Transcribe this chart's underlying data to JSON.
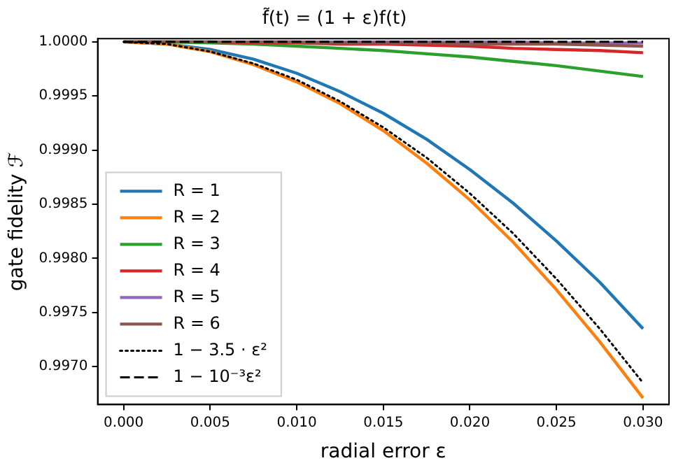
{
  "chart_data": {
    "type": "line",
    "title": "f̃(t) = (1 + ε)f(t)",
    "xlabel": "radial error ε",
    "ylabel": "gate fidelity ℱ",
    "x": [
      0,
      0.0025,
      0.005,
      0.0075,
      0.01,
      0.0125,
      0.015,
      0.0175,
      0.02,
      0.0225,
      0.025,
      0.0275,
      0.03
    ],
    "series": [
      {
        "name": "R = 1",
        "color": "#1f77b4",
        "values": [
          1,
          0.99998,
          0.99993,
          0.99984,
          0.99971,
          0.99954,
          0.99934,
          0.9991,
          0.99882,
          0.99851,
          0.99816,
          0.99778,
          0.99735
        ]
      },
      {
        "name": "R = 2",
        "color": "#ff7f0e",
        "values": [
          1,
          0.99998,
          0.99991,
          0.99979,
          0.99963,
          0.99943,
          0.99918,
          0.99888,
          0.99854,
          0.99815,
          0.99771,
          0.99723,
          0.99671
        ]
      },
      {
        "name": "R = 3",
        "color": "#2ca02c",
        "values": [
          1,
          1,
          0.99999,
          0.99998,
          0.99996,
          0.99994,
          0.99992,
          0.99989,
          0.99986,
          0.99982,
          0.99978,
          0.99973,
          0.99968
        ]
      },
      {
        "name": "R = 4",
        "color": "#d62728",
        "values": [
          1,
          1,
          1,
          0.99999,
          0.99999,
          0.99998,
          0.99998,
          0.99997,
          0.99996,
          0.99994,
          0.99993,
          0.99992,
          0.9999
        ]
      },
      {
        "name": "R = 5",
        "color": "#9467bd",
        "values": [
          null,
          null,
          null,
          1,
          1,
          1,
          1,
          1,
          1,
          1,
          0.99999,
          0.99999,
          0.99999
        ]
      },
      {
        "name": "R = 6",
        "color": "#8c564b",
        "values": [
          1,
          1,
          1,
          1,
          1,
          0.99999,
          0.99999,
          0.99999,
          0.99998,
          0.99998,
          0.99998,
          0.99997,
          0.99996
        ]
      },
      {
        "name": "1 − 3.5 · ε²",
        "color": "#000000",
        "line_style": "dotted",
        "values": [
          1,
          0.99998,
          0.99991,
          0.9998,
          0.99965,
          0.99945,
          0.99921,
          0.99893,
          0.9986,
          0.99823,
          0.99781,
          0.99735,
          0.99685
        ]
      },
      {
        "name": "1 − 10⁻³ε²",
        "color": "#000000",
        "line_style": "dashed",
        "values": [
          1,
          1,
          1,
          1,
          1,
          1,
          1,
          1,
          1,
          1,
          1,
          1,
          1
        ]
      }
    ],
    "xlim": [
      -0.0015,
      0.0315
    ],
    "ylim": [
      0.99665,
      1.00003
    ],
    "xticks": [
      {
        "value": 0,
        "label": "0.000"
      },
      {
        "value": 0.005,
        "label": "0.005"
      },
      {
        "value": 0.01,
        "label": "0.010"
      },
      {
        "value": 0.015,
        "label": "0.015"
      },
      {
        "value": 0.02,
        "label": "0.020"
      },
      {
        "value": 0.025,
        "label": "0.025"
      },
      {
        "value": 0.03,
        "label": "0.030"
      }
    ],
    "yticks": [
      {
        "value": 0.997,
        "label": "0.9970"
      },
      {
        "value": 0.9975,
        "label": "0.9975"
      },
      {
        "value": 0.998,
        "label": "0.9980"
      },
      {
        "value": 0.9985,
        "label": "0.9985"
      },
      {
        "value": 0.999,
        "label": "0.9990"
      },
      {
        "value": 0.9995,
        "label": "0.9995"
      },
      {
        "value": 1,
        "label": "1.0000"
      }
    ],
    "legend": "bottom left",
    "grid": false,
    "line_style": "solid",
    "marker": "none"
  }
}
